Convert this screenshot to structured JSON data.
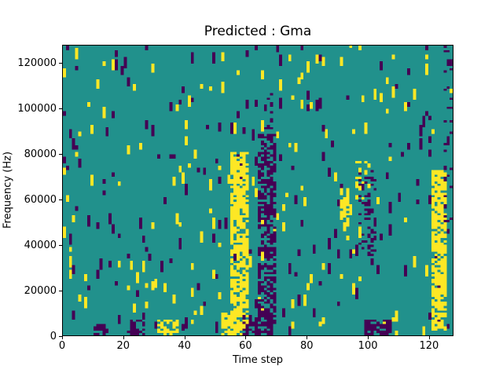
{
  "chart_data": {
    "type": "heatmap",
    "title": "Predicted : Gma",
    "xlabel": "Time step",
    "ylabel": "Frequency (Hz)",
    "x_range": [
      0,
      128
    ],
    "y_range": [
      0,
      128000
    ],
    "x_ticks": [
      0,
      20,
      40,
      60,
      80,
      100,
      120
    ],
    "x_tick_labels": [
      "0",
      "20",
      "40",
      "60",
      "80",
      "100",
      "120"
    ],
    "y_ticks": [
      0,
      20000,
      40000,
      60000,
      80000,
      100000,
      120000
    ],
    "y_tick_labels": [
      "0",
      "20000",
      "40000",
      "60000",
      "80000",
      "100000",
      "120000"
    ],
    "grid": {
      "cols": 128,
      "rows": 128,
      "row_unit_hz": 1000
    },
    "colors": {
      "background": "#21918c",
      "high": "#fde725",
      "low": "#440154",
      "figure_bg": "#ffffff",
      "axis": "#000000"
    },
    "legend": "none",
    "noise": {
      "seed": 11,
      "high_start_p": 0.011,
      "low_start_p": 0.011,
      "run_min": 2,
      "run_max": 5
    },
    "features": [
      {
        "color": "low",
        "c0": 10,
        "c1": 14,
        "r0": 0,
        "r1": 4,
        "p": 0.6
      },
      {
        "color": "low",
        "c0": 21,
        "c1": 26,
        "r0": 0,
        "r1": 6,
        "p": 0.6
      },
      {
        "color": "high",
        "c0": 31,
        "c1": 37,
        "r0": 0,
        "r1": 6,
        "p": 0.6
      },
      {
        "color": "high",
        "c0": 52,
        "c1": 60,
        "r0": 0,
        "r1": 9,
        "p": 0.75
      },
      {
        "color": "low",
        "c0": 59,
        "c1": 68,
        "r0": 0,
        "r1": 8,
        "p": 0.5
      },
      {
        "color": "high",
        "c0": 55,
        "c1": 60,
        "r0": 8,
        "r1": 80,
        "p": 0.75
      },
      {
        "color": "low",
        "c0": 64,
        "c1": 69,
        "r0": 5,
        "r1": 88,
        "p": 0.55
      },
      {
        "color": "low",
        "c0": 66,
        "c1": 68,
        "r0": 88,
        "r1": 108,
        "p": 0.25
      },
      {
        "color": "high",
        "c0": 91,
        "c1": 93,
        "r0": 48,
        "r1": 64,
        "p": 0.55
      },
      {
        "color": "high",
        "c0": 96,
        "c1": 100,
        "r0": 58,
        "r1": 76,
        "p": 0.3
      },
      {
        "color": "low",
        "c0": 97,
        "c1": 102,
        "r0": 35,
        "r1": 72,
        "p": 0.25
      },
      {
        "color": "low",
        "c0": 99,
        "c1": 107,
        "r0": 0,
        "r1": 6,
        "p": 0.8
      },
      {
        "color": "high",
        "c0": 121,
        "c1": 125,
        "r0": 2,
        "r1": 72,
        "p": 0.75
      },
      {
        "color": "low",
        "c0": 125,
        "c1": 127,
        "r0": 50,
        "r1": 127,
        "p": 0.18
      }
    ]
  }
}
